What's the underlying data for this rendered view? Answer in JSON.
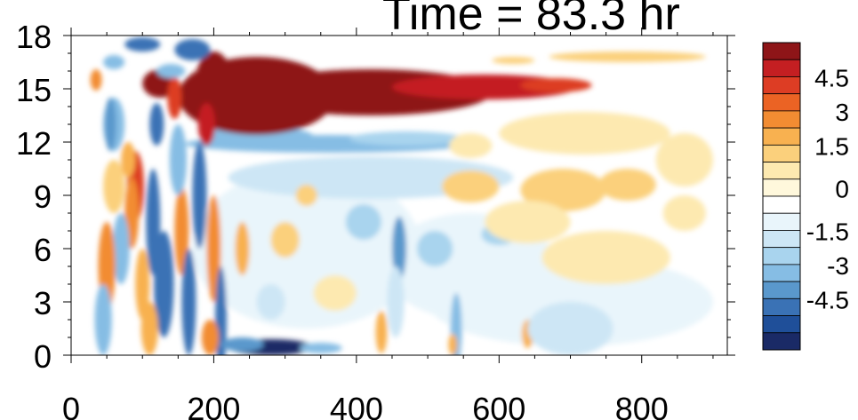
{
  "chart_data": {
    "type": "heatmap",
    "title": "Time = 83.3 hr",
    "xlabel": "",
    "ylabel": "",
    "xlim": [
      0,
      920
    ],
    "ylim": [
      0,
      18
    ],
    "x_ticks": [
      0,
      200,
      400,
      600,
      800
    ],
    "y_ticks": [
      0,
      3,
      6,
      9,
      12,
      15,
      18
    ],
    "colorbar": {
      "levels": [
        -6,
        -5.25,
        -4.5,
        -3.75,
        -3,
        -2.25,
        -1.5,
        -0.75,
        -0.375,
        0.375,
        0.75,
        1.5,
        2.25,
        3,
        3.75,
        4.5,
        5.25,
        6
      ],
      "colors": [
        "#1a2a66",
        "#1f4f99",
        "#3a72b5",
        "#5a98cc",
        "#86bde4",
        "#a9d4ee",
        "#cde6f5",
        "#e9f5fb",
        "#ffffff",
        "#fff8dc",
        "#fde9b0",
        "#fbd07c",
        "#f8b150",
        "#f28c32",
        "#eb6324",
        "#dd3d24",
        "#c41f22",
        "#8e1518"
      ],
      "tick_labels": [
        "4.5",
        "3",
        "1.5",
        "0",
        "-1.5",
        "-3",
        "-4.5"
      ]
    },
    "features": [
      {
        "name": "upper-positive-band",
        "x_range": [
          160,
          720
        ],
        "y_range": [
          12.5,
          16.5
        ],
        "value": 6
      },
      {
        "name": "lower-negative-band",
        "x_range": [
          180,
          560
        ],
        "y_range": [
          11.5,
          12.5
        ],
        "value": -3
      },
      {
        "name": "surface-negative-patch",
        "x_range": [
          220,
          340
        ],
        "y_range": [
          0,
          0.8
        ],
        "value": -5
      },
      {
        "name": "upper-right-positive",
        "x_range": [
          620,
          900
        ],
        "y_range": [
          8,
          11
        ],
        "value": 1.8
      }
    ]
  }
}
